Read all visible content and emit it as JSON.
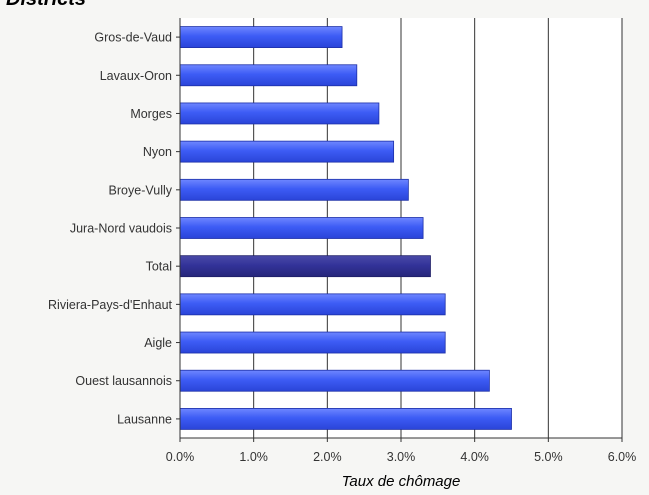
{
  "chart_data": {
    "type": "bar",
    "orientation": "horizontal",
    "title": "Districts",
    "xlabel": "Taux de chômage",
    "ylabel": "",
    "xlim": [
      0,
      6
    ],
    "x_ticks": [
      "0.0%",
      "1.0%",
      "2.0%",
      "3.0%",
      "4.0%",
      "5.0%",
      "6.0%"
    ],
    "grid": "vertical",
    "categories": [
      "Gros-de-Vaud",
      "Lavaux-Oron",
      "Morges",
      "Nyon",
      "Broye-Vully",
      "Jura-Nord vaudois",
      "Total",
      "Riviera-Pays-d'Enhaut",
      "Aigle",
      "Ouest lausannois",
      "Lausanne"
    ],
    "values": [
      2.2,
      2.4,
      2.7,
      2.9,
      3.1,
      3.3,
      3.4,
      3.6,
      3.6,
      4.2,
      4.5
    ],
    "highlight_category": "Total",
    "colors": {
      "bar": "#3d5cf5",
      "highlight": "#333399",
      "plot_background": "#ffffff",
      "grid": "#333333"
    }
  }
}
